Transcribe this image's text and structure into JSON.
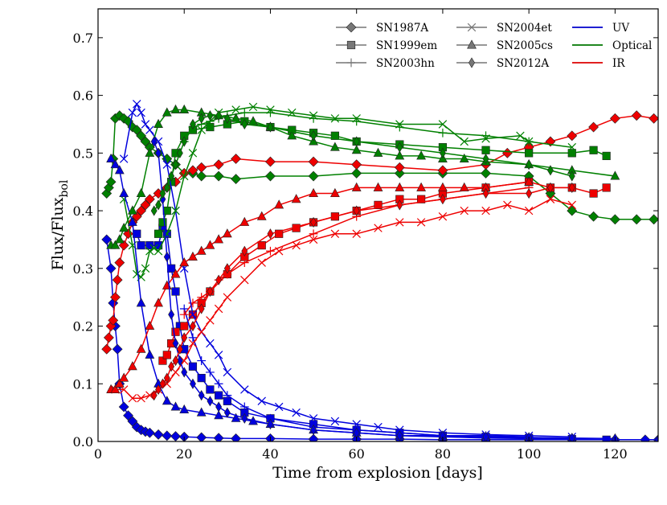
{
  "chart_data": {
    "type": "line",
    "xlabel": "Time from explosion [days]",
    "ylabel": {
      "main": "Flux/Flux",
      "sub": "bol"
    },
    "xlim": [
      0,
      130
    ],
    "ylim": [
      0,
      0.75
    ],
    "xticks": [
      0,
      20,
      40,
      60,
      80,
      100,
      120
    ],
    "xtick_labels": [
      "0",
      "20",
      "40",
      "60",
      "80",
      "100",
      "120"
    ],
    "yticks": [
      0.0,
      0.1,
      0.2,
      0.3,
      0.4,
      0.5,
      0.6,
      0.7
    ],
    "ytick_labels": [
      "0.0",
      "0.1",
      "0.2",
      "0.3",
      "0.4",
      "0.5",
      "0.6",
      "0.7"
    ],
    "grid": false,
    "legend_placement": "top-right",
    "legend": {
      "objects": [
        {
          "name": "SN1987A",
          "marker": "diamond"
        },
        {
          "name": "SN1999em",
          "marker": "square"
        },
        {
          "name": "SN2003hn",
          "marker": "plus"
        },
        {
          "name": "SN2004et",
          "marker": "x"
        },
        {
          "name": "SN2005cs",
          "marker": "triangle"
        },
        {
          "name": "SN2012A",
          "marker": "thin_diamond"
        }
      ],
      "bands": [
        {
          "name": "UV",
          "color": "#0000cc"
        },
        {
          "name": "Optical",
          "color": "#007700"
        },
        {
          "name": "IR",
          "color": "#dd0000"
        }
      ]
    },
    "colors": {
      "UV": "#0000dd",
      "Optical": "#008000",
      "IR": "#ee0000",
      "legend_gray": "#777777"
    },
    "series": [
      {
        "object": "SN1987A",
        "band": "UV",
        "marker": "diamond",
        "x": [
          2,
          3,
          3.5,
          4,
          4.5,
          5,
          6,
          7,
          8,
          9,
          10,
          11,
          12,
          14,
          16,
          18,
          20,
          24,
          28,
          32,
          40,
          50,
          60,
          70,
          80,
          90,
          100,
          110,
          120,
          127,
          130
        ],
        "y": [
          0.35,
          0.3,
          0.24,
          0.2,
          0.16,
          0.1,
          0.06,
          0.045,
          0.035,
          0.025,
          0.02,
          0.017,
          0.015,
          0.012,
          0.01,
          0.009,
          0.008,
          0.007,
          0.006,
          0.005,
          0.005,
          0.004,
          0.004,
          0.004,
          0.003,
          0.003,
          0.003,
          0.003,
          0.003,
          0.003,
          0.003
        ]
      },
      {
        "object": "SN1987A",
        "band": "Optical",
        "marker": "diamond",
        "x": [
          2,
          2.5,
          3,
          3.5,
          4,
          5,
          6,
          7,
          8,
          9,
          10,
          11,
          12,
          14,
          16,
          18,
          20,
          22,
          24,
          28,
          32,
          40,
          50,
          60,
          70,
          80,
          90,
          100,
          105,
          110,
          115,
          120,
          125,
          129
        ],
        "y": [
          0.43,
          0.44,
          0.45,
          0.49,
          0.56,
          0.565,
          0.56,
          0.555,
          0.545,
          0.54,
          0.53,
          0.52,
          0.51,
          0.5,
          0.49,
          0.48,
          0.465,
          0.465,
          0.46,
          0.46,
          0.455,
          0.46,
          0.46,
          0.465,
          0.465,
          0.465,
          0.465,
          0.46,
          0.43,
          0.4,
          0.39,
          0.385,
          0.385,
          0.385
        ]
      },
      {
        "object": "SN1987A",
        "band": "IR",
        "marker": "diamond",
        "x": [
          2,
          2.5,
          3,
          3.5,
          4,
          4.5,
          5,
          6,
          7,
          8,
          9,
          10,
          11,
          12,
          14,
          16,
          18,
          20,
          22,
          24,
          28,
          32,
          40,
          50,
          60,
          70,
          80,
          90,
          95,
          100,
          105,
          110,
          115,
          120,
          125,
          129
        ],
        "y": [
          0.16,
          0.18,
          0.2,
          0.21,
          0.25,
          0.28,
          0.31,
          0.34,
          0.36,
          0.38,
          0.39,
          0.4,
          0.41,
          0.42,
          0.43,
          0.44,
          0.45,
          0.465,
          0.47,
          0.475,
          0.48,
          0.49,
          0.485,
          0.485,
          0.48,
          0.475,
          0.47,
          0.48,
          0.5,
          0.51,
          0.52,
          0.53,
          0.545,
          0.56,
          0.565,
          0.56
        ]
      },
      {
        "object": "SN1999em",
        "band": "UV",
        "marker": "square",
        "x": [
          9,
          10,
          12,
          14,
          15,
          16,
          17,
          18,
          19,
          20,
          22,
          24,
          26,
          28,
          30,
          34,
          40,
          50,
          60,
          70,
          80,
          90,
          100,
          110,
          118
        ],
        "y": [
          0.36,
          0.34,
          0.34,
          0.34,
          0.37,
          0.36,
          0.3,
          0.26,
          0.2,
          0.16,
          0.13,
          0.11,
          0.09,
          0.08,
          0.07,
          0.05,
          0.04,
          0.03,
          0.02,
          0.015,
          0.01,
          0.008,
          0.006,
          0.004,
          0.003
        ]
      },
      {
        "object": "SN1999em",
        "band": "Optical",
        "marker": "square",
        "x": [
          14,
          15,
          16,
          17,
          18,
          20,
          22,
          26,
          30,
          34,
          40,
          45,
          50,
          55,
          60,
          70,
          80,
          90,
          100,
          110,
          115,
          118
        ],
        "y": [
          0.36,
          0.38,
          0.4,
          0.45,
          0.5,
          0.53,
          0.54,
          0.545,
          0.55,
          0.555,
          0.545,
          0.54,
          0.535,
          0.53,
          0.52,
          0.515,
          0.51,
          0.505,
          0.5,
          0.5,
          0.505,
          0.495
        ]
      },
      {
        "object": "SN1999em",
        "band": "IR",
        "marker": "square",
        "x": [
          15,
          16,
          17,
          18,
          20,
          22,
          24,
          26,
          30,
          34,
          38,
          42,
          46,
          50,
          55,
          60,
          65,
          70,
          75,
          80,
          90,
          100,
          105,
          110,
          115,
          118
        ],
        "y": [
          0.14,
          0.15,
          0.17,
          0.19,
          0.2,
          0.22,
          0.24,
          0.26,
          0.29,
          0.32,
          0.34,
          0.36,
          0.37,
          0.38,
          0.39,
          0.4,
          0.41,
          0.42,
          0.42,
          0.43,
          0.44,
          0.45,
          0.44,
          0.44,
          0.43,
          0.44
        ]
      },
      {
        "object": "SN2003hn",
        "band": "UV",
        "marker": "plus",
        "x": [
          20,
          22,
          24,
          26,
          28,
          30,
          34,
          40,
          50,
          60,
          70,
          80,
          90,
          100
        ],
        "y": [
          0.23,
          0.18,
          0.14,
          0.12,
          0.1,
          0.08,
          0.06,
          0.04,
          0.025,
          0.02,
          0.015,
          0.01,
          0.01,
          0.008
        ]
      },
      {
        "object": "SN2003hn",
        "band": "Optical",
        "marker": "plus",
        "x": [
          20,
          22,
          24,
          26,
          28,
          30,
          34,
          40,
          50,
          60,
          70,
          80,
          90,
          100
        ],
        "y": [
          0.52,
          0.545,
          0.55,
          0.555,
          0.56,
          0.565,
          0.57,
          0.57,
          0.56,
          0.555,
          0.545,
          0.535,
          0.53,
          0.52
        ]
      },
      {
        "object": "SN2003hn",
        "band": "IR",
        "marker": "plus",
        "x": [
          20,
          22,
          24,
          26,
          28,
          30,
          34,
          40,
          50,
          60,
          70,
          80,
          90,
          100
        ],
        "y": [
          0.22,
          0.24,
          0.25,
          0.26,
          0.28,
          0.29,
          0.31,
          0.33,
          0.36,
          0.39,
          0.41,
          0.42,
          0.43,
          0.44
        ]
      },
      {
        "object": "SN2004et",
        "band": "UV",
        "marker": "x",
        "x": [
          6,
          8,
          9,
          10,
          11,
          12,
          14,
          16,
          18,
          20,
          22,
          24,
          26,
          28,
          30,
          34,
          38,
          42,
          46,
          50,
          55,
          60,
          65,
          70,
          80,
          90,
          100,
          110
        ],
        "y": [
          0.49,
          0.57,
          0.585,
          0.57,
          0.55,
          0.54,
          0.52,
          0.48,
          0.4,
          0.3,
          0.22,
          0.19,
          0.17,
          0.15,
          0.12,
          0.09,
          0.07,
          0.06,
          0.05,
          0.04,
          0.035,
          0.03,
          0.025,
          0.02,
          0.015,
          0.012,
          0.01,
          0.008
        ]
      },
      {
        "object": "SN2004et",
        "band": "Optical",
        "marker": "x",
        "x": [
          6,
          8,
          9,
          10,
          11,
          12,
          13,
          14,
          16,
          18,
          20,
          22,
          24,
          28,
          32,
          36,
          40,
          45,
          50,
          55,
          60,
          70,
          80,
          85,
          90,
          98,
          100,
          110
        ],
        "y": [
          0.42,
          0.34,
          0.29,
          0.285,
          0.3,
          0.33,
          0.335,
          0.33,
          0.36,
          0.4,
          0.46,
          0.5,
          0.54,
          0.57,
          0.575,
          0.58,
          0.575,
          0.57,
          0.565,
          0.56,
          0.56,
          0.55,
          0.55,
          0.52,
          0.525,
          0.53,
          0.52,
          0.51
        ]
      },
      {
        "object": "SN2004et",
        "band": "IR",
        "marker": "x",
        "x": [
          4,
          6,
          8,
          10,
          12,
          14,
          16,
          18,
          20,
          22,
          24,
          26,
          28,
          30,
          34,
          38,
          42,
          46,
          50,
          55,
          60,
          65,
          70,
          75,
          80,
          85,
          90,
          95,
          100,
          105,
          110
        ],
        "y": [
          0.09,
          0.09,
          0.075,
          0.075,
          0.08,
          0.09,
          0.1,
          0.12,
          0.14,
          0.17,
          0.19,
          0.21,
          0.23,
          0.25,
          0.28,
          0.31,
          0.33,
          0.34,
          0.35,
          0.36,
          0.36,
          0.37,
          0.38,
          0.38,
          0.39,
          0.4,
          0.4,
          0.41,
          0.4,
          0.42,
          0.41
        ]
      },
      {
        "object": "SN2005cs",
        "band": "UV",
        "marker": "triangle",
        "x": [
          3,
          4,
          5,
          6,
          8,
          10,
          12,
          14,
          16,
          18,
          20,
          24,
          28,
          32,
          36,
          40,
          50,
          60,
          70,
          80,
          90,
          100,
          110,
          120,
          130
        ],
        "y": [
          0.49,
          0.48,
          0.47,
          0.43,
          0.38,
          0.24,
          0.15,
          0.1,
          0.07,
          0.06,
          0.055,
          0.05,
          0.045,
          0.04,
          0.035,
          0.03,
          0.02,
          0.015,
          0.01,
          0.008,
          0.006,
          0.005,
          0.004,
          0.003,
          0.003
        ]
      },
      {
        "object": "SN2005cs",
        "band": "Optical",
        "marker": "triangle",
        "x": [
          3,
          4,
          5,
          6,
          8,
          10,
          12,
          14,
          16,
          18,
          20,
          24,
          28,
          32,
          36,
          40,
          45,
          50,
          55,
          60,
          65,
          70,
          75,
          80,
          85,
          90,
          100,
          110,
          120
        ],
        "y": [
          0.34,
          0.34,
          0.35,
          0.37,
          0.4,
          0.43,
          0.5,
          0.55,
          0.57,
          0.575,
          0.575,
          0.57,
          0.565,
          0.56,
          0.555,
          0.545,
          0.53,
          0.52,
          0.51,
          0.505,
          0.5,
          0.495,
          0.495,
          0.49,
          0.49,
          0.485,
          0.48,
          0.47,
          0.46
        ]
      },
      {
        "object": "SN2005cs",
        "band": "IR",
        "marker": "triangle",
        "x": [
          3,
          4,
          5,
          6,
          8,
          10,
          12,
          14,
          16,
          18,
          20,
          22,
          24,
          26,
          28,
          30,
          34,
          38,
          42,
          46,
          50,
          55,
          60,
          65,
          70,
          75,
          80,
          85,
          90,
          100
        ],
        "y": [
          0.09,
          0.09,
          0.1,
          0.11,
          0.13,
          0.16,
          0.2,
          0.24,
          0.27,
          0.29,
          0.31,
          0.32,
          0.33,
          0.34,
          0.35,
          0.36,
          0.38,
          0.39,
          0.41,
          0.42,
          0.43,
          0.43,
          0.44,
          0.44,
          0.44,
          0.44,
          0.44,
          0.44,
          0.44,
          0.45
        ]
      },
      {
        "object": "SN2012A",
        "band": "UV",
        "marker": "thin_diamond",
        "x": [
          13,
          14,
          15,
          16,
          17,
          18,
          19,
          20,
          22,
          24,
          26,
          28,
          30,
          34,
          40,
          50,
          60,
          70,
          80,
          90,
          100,
          110,
          120
        ],
        "y": [
          0.52,
          0.5,
          0.42,
          0.32,
          0.22,
          0.17,
          0.14,
          0.12,
          0.1,
          0.08,
          0.07,
          0.06,
          0.05,
          0.04,
          0.03,
          0.02,
          0.015,
          0.01,
          0.01,
          0.008,
          0.007,
          0.006,
          0.005
        ]
      },
      {
        "object": "SN2012A",
        "band": "Optical",
        "marker": "thin_diamond",
        "x": [
          13,
          14,
          15,
          16,
          17,
          18,
          19,
          20,
          22,
          24,
          26,
          28,
          30,
          34,
          40,
          50,
          60,
          70,
          80,
          90,
          100,
          105,
          110
        ],
        "y": [
          0.4,
          0.41,
          0.43,
          0.44,
          0.46,
          0.48,
          0.5,
          0.52,
          0.55,
          0.56,
          0.565,
          0.565,
          0.56,
          0.55,
          0.545,
          0.53,
          0.52,
          0.51,
          0.5,
          0.49,
          0.48,
          0.47,
          0.46
        ]
      },
      {
        "object": "SN2012A",
        "band": "IR",
        "marker": "thin_diamond",
        "x": [
          13,
          14,
          15,
          16,
          17,
          18,
          19,
          20,
          22,
          24,
          26,
          28,
          30,
          34,
          40,
          50,
          60,
          70,
          80,
          90,
          100,
          105,
          110
        ],
        "y": [
          0.08,
          0.09,
          0.1,
          0.11,
          0.13,
          0.14,
          0.16,
          0.18,
          0.2,
          0.23,
          0.26,
          0.28,
          0.3,
          0.33,
          0.36,
          0.38,
          0.4,
          0.41,
          0.42,
          0.43,
          0.43,
          0.44,
          0.44
        ]
      }
    ]
  }
}
